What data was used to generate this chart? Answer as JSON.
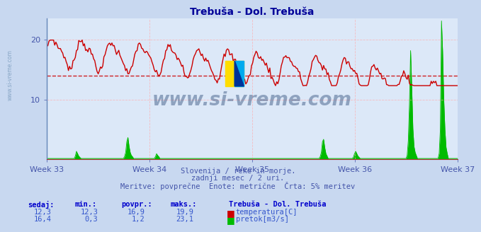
{
  "title": "Trebuša - Dol. Trebuša",
  "title_color": "#000099",
  "bg_color": "#c8d8f0",
  "plot_bg_color": "#dce8f8",
  "grid_color_h": "#ffaaaa",
  "grid_color_v": "#ffaaaa",
  "spine_color": "#6688bb",
  "xlabel_color": "#4455aa",
  "ytick_color": "#4455aa",
  "yticks": [
    10,
    20
  ],
  "ymin": 0,
  "ymax": 23.5,
  "week_labels": [
    "Week 33",
    "Week 34",
    "Week 35",
    "Week 36",
    "Week 37"
  ],
  "temp_color": "#cc0000",
  "flow_color": "#00bb00",
  "avg_line_color": "#cc0000",
  "avg_temp": 14.0,
  "watermark_text": "www.si-vreme.com",
  "watermark_color": "#1a3a6a",
  "watermark_alpha": 0.4,
  "logo_yellow": "#ffdd00",
  "logo_blue": "#00aaee",
  "logo_dark": "#003399",
  "subtitle1": "Slovenija / reke in morje.",
  "subtitle2": "zadnji mesec / 2 uri.",
  "subtitle3": "Meritve: povprečne  Enote: metrične  Črta: 5% meritev",
  "subtitle_color": "#4455aa",
  "table_header_color": "#0000cc",
  "table_data_color": "#3355cc",
  "n_points": 360,
  "temp_min": 12.3,
  "temp_max": 19.9,
  "temp_avg": 16.9,
  "flow_min": 0.3,
  "flow_max": 23.1,
  "flow_avg": 1.2,
  "row1": [
    "12,3",
    "12,3",
    "16,9",
    "19,9"
  ],
  "row2": [
    "16,4",
    "0,3",
    "1,2",
    "23,1"
  ],
  "headers": [
    "sedaj:",
    "min.:",
    "povpr.:",
    "maks.:"
  ],
  "legend_title": "Trebuša - Dol. Trebuša",
  "legend_temp": "temperatura[C]",
  "legend_flow": "pretok[m3/s]"
}
